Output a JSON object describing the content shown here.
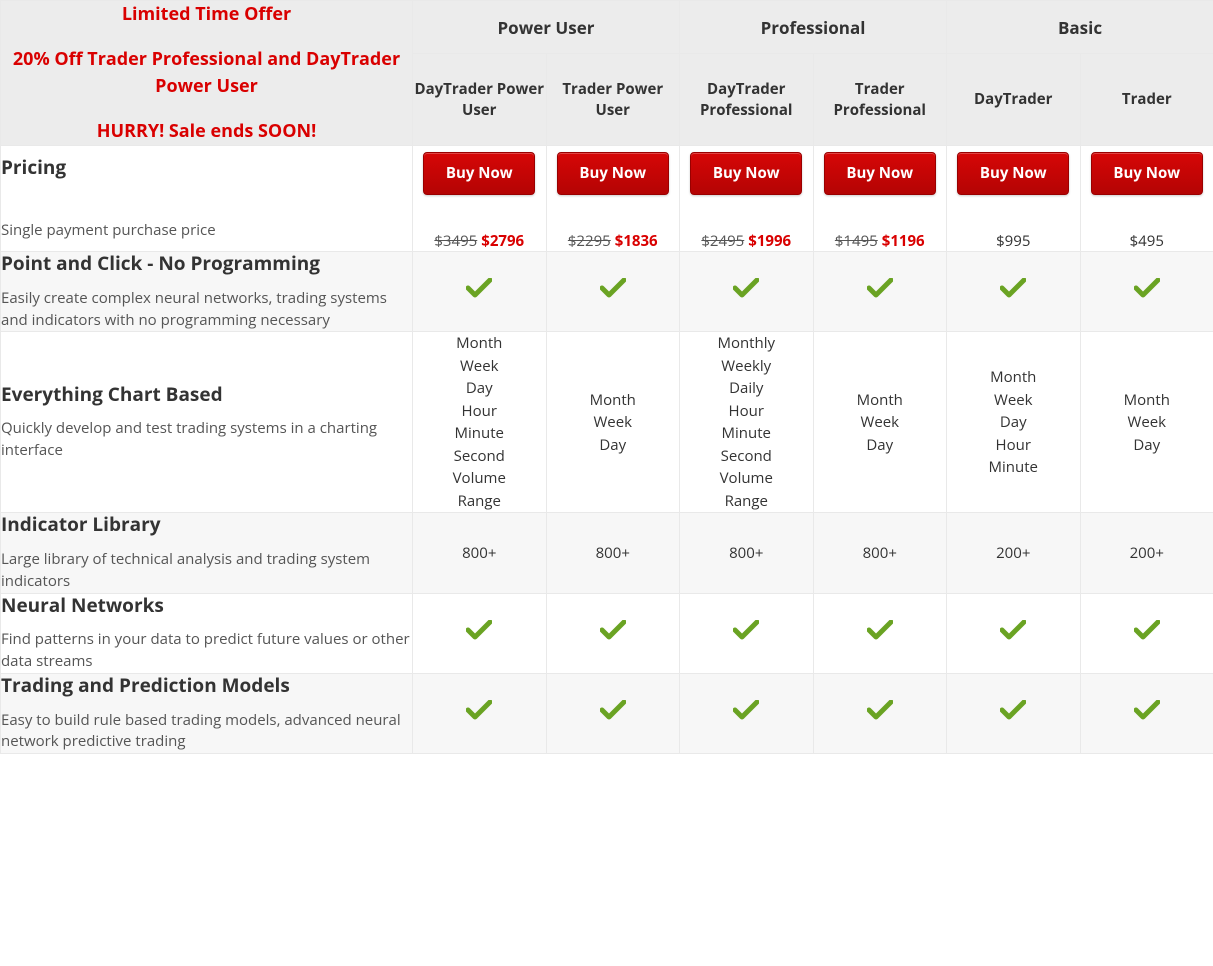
{
  "colors": {
    "accent_red": "#d90000",
    "button_bg_top": "#d60606",
    "button_bg_bottom": "#b40404",
    "button_border": "#9a0000",
    "check_green": "#6aa323",
    "header_bg": "#ececec",
    "stripe_bg": "#f7f7f7",
    "border": "#e9e9e9",
    "text": "#333333",
    "subtext": "#555555"
  },
  "offer": {
    "line1": "Limited Time Offer",
    "line2": "20% Off Trader Professional and DayTrader Power User",
    "line3": "HURRY! Sale ends SOON!"
  },
  "tiers": [
    {
      "label": "Power User"
    },
    {
      "label": "Professional"
    },
    {
      "label": "Basic"
    }
  ],
  "products": [
    {
      "key": "dt_power",
      "label": "DayTrader Power User"
    },
    {
      "key": "tr_power",
      "label": "Trader Power User"
    },
    {
      "key": "dt_pro",
      "label": "DayTrader Professional"
    },
    {
      "key": "tr_pro",
      "label": "Trader Professional"
    },
    {
      "key": "dt_basic",
      "label": "DayTrader"
    },
    {
      "key": "tr_basic",
      "label": "Trader"
    }
  ],
  "buy_label": "Buy Now",
  "pricing_row": {
    "title": "Pricing",
    "subtitle": "Single payment purchase price",
    "prices": {
      "dt_power": {
        "old": "$3495",
        "new": "$2796"
      },
      "tr_power": {
        "old": "$2295",
        "new": "$1836"
      },
      "dt_pro": {
        "old": "$2495",
        "new": "$1996"
      },
      "tr_pro": {
        "old": "$1495",
        "new": "$1196"
      },
      "dt_basic": {
        "plain": "$995"
      },
      "tr_basic": {
        "plain": "$495"
      }
    }
  },
  "features": [
    {
      "key": "point_click",
      "title": "Point and Click - No Programming",
      "subtitle": "Easily create complex neural networks, trading systems and indicators with no programming necessary",
      "stripe": true,
      "values": {
        "dt_power": "check",
        "tr_power": "check",
        "dt_pro": "check",
        "tr_pro": "check",
        "dt_basic": "check",
        "tr_basic": "check"
      }
    },
    {
      "key": "chart_based",
      "title": "Everything Chart Based",
      "subtitle": "Quickly develop and test trading systems in a charting interface",
      "stripe": false,
      "values": {
        "dt_power": [
          "Month",
          "Week",
          "Day",
          "Hour",
          "Minute",
          "Second",
          "Volume",
          "Range"
        ],
        "tr_power": [
          "Month",
          "Week",
          "Day"
        ],
        "dt_pro": [
          "Monthly",
          "Weekly",
          "Daily",
          "Hour",
          "Minute",
          "Second",
          "Volume",
          "Range"
        ],
        "tr_pro": [
          "Month",
          "Week",
          "Day"
        ],
        "dt_basic": [
          "Month",
          "Week",
          "Day",
          "Hour",
          "Minute"
        ],
        "tr_basic": [
          "Month",
          "Week",
          "Day"
        ]
      }
    },
    {
      "key": "indicator_lib",
      "title": "Indicator Library",
      "subtitle": "Large library of technical analysis and trading system indicators",
      "stripe": true,
      "values": {
        "dt_power": "800+",
        "tr_power": "800+",
        "dt_pro": "800+",
        "tr_pro": "800+",
        "dt_basic": "200+",
        "tr_basic": "200+"
      }
    },
    {
      "key": "neural_nets",
      "title": "Neural Networks",
      "subtitle": "Find patterns in your data to predict future values or other data streams",
      "stripe": false,
      "values": {
        "dt_power": "check",
        "tr_power": "check",
        "dt_pro": "check",
        "tr_pro": "check",
        "dt_basic": "check",
        "tr_basic": "check"
      }
    },
    {
      "key": "trading_models",
      "title": "Trading and Prediction Models",
      "subtitle": "Easy to build rule based trading models, advanced neural network predictive trading",
      "stripe": true,
      "values": {
        "dt_power": "check",
        "tr_power": "check",
        "dt_pro": "check",
        "tr_pro": "check",
        "dt_basic": "check",
        "tr_basic": "check"
      }
    }
  ]
}
